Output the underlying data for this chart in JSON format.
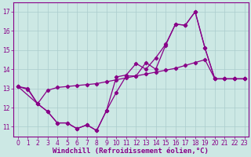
{
  "background_color": "#cce8e4",
  "grid_color": "#aacccc",
  "line_color": "#880088",
  "xlim_min": -0.5,
  "xlim_max": 23.4,
  "ylim_min": 10.5,
  "ylim_max": 17.5,
  "xticks": [
    0,
    1,
    2,
    3,
    4,
    5,
    6,
    7,
    8,
    9,
    10,
    11,
    12,
    13,
    14,
    15,
    16,
    17,
    18,
    19,
    20,
    21,
    22,
    23
  ],
  "yticks": [
    11,
    12,
    13,
    14,
    15,
    16,
    17
  ],
  "line1_x": [
    0,
    1,
    2,
    3,
    4,
    5,
    6,
    7,
    8,
    9,
    10,
    11,
    12,
    13,
    14,
    15,
    16,
    17,
    18,
    19,
    20,
    21,
    22,
    23
  ],
  "line1_y": [
    13.1,
    12.95,
    12.2,
    11.8,
    11.2,
    11.2,
    10.9,
    11.1,
    10.8,
    11.85,
    12.8,
    13.65,
    13.65,
    14.35,
    14.0,
    15.25,
    16.35,
    16.3,
    17.0,
    15.1,
    13.5,
    13.5,
    13.5,
    13.5
  ],
  "line2_x": [
    0,
    2,
    3,
    4,
    5,
    6,
    7,
    8,
    9,
    10,
    11,
    12,
    13,
    14,
    15,
    16,
    17,
    18,
    19,
    20,
    21,
    22,
    23
  ],
  "line2_y": [
    13.1,
    12.2,
    11.8,
    11.2,
    11.2,
    10.9,
    11.1,
    10.8,
    11.85,
    13.6,
    13.7,
    14.3,
    14.0,
    14.6,
    15.3,
    16.35,
    16.3,
    17.0,
    15.1,
    13.5,
    13.5,
    13.5,
    13.5
  ],
  "line3_x": [
    0,
    1,
    2,
    3,
    4,
    5,
    6,
    7,
    8,
    9,
    10,
    11,
    12,
    13,
    14,
    15,
    16,
    17,
    18,
    19,
    20,
    21,
    22,
    23
  ],
  "line3_y": [
    13.1,
    13.0,
    12.2,
    12.9,
    13.05,
    13.1,
    13.15,
    13.2,
    13.25,
    13.35,
    13.45,
    13.55,
    13.65,
    13.75,
    13.85,
    13.95,
    14.05,
    14.2,
    14.35,
    14.5,
    13.5,
    13.5,
    13.5,
    13.5
  ],
  "xlabel": "Windchill (Refroidissement éolien,°C)",
  "tick_fontsize": 5.5,
  "xlabel_fontsize": 6.5,
  "linewidth": 0.9,
  "marker": "D",
  "marker_size": 2.2
}
